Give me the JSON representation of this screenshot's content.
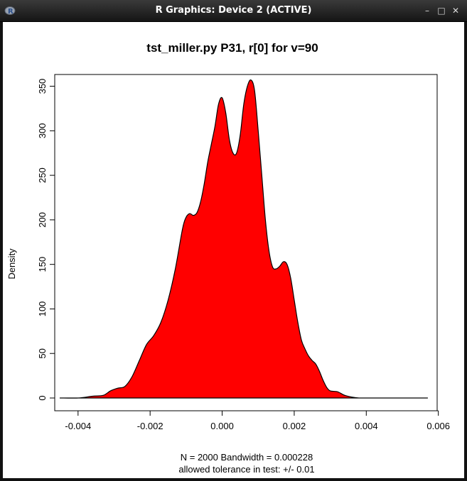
{
  "window": {
    "title": "R Graphics: Device 2 (ACTIVE)",
    "icons": {
      "app": "r-logo-icon",
      "minimize": "minimize-icon",
      "maximize": "maximize-icon",
      "close": "close-icon"
    },
    "minimize_glyph": "–",
    "maximize_glyph": "□",
    "close_glyph": "✕"
  },
  "chart_data": {
    "type": "area",
    "title": "tst_miller.py P31, r[0] for v=90",
    "xlabel": "N = 2000   Bandwidth = 0.000228",
    "xlabel2": "allowed tolerance in test: +/- 0.01",
    "ylabel": "Density",
    "xlim": [
      -0.0046,
      0.0059
    ],
    "ylim": [
      0,
      360
    ],
    "xticks": [
      -0.004,
      -0.002,
      0.0,
      0.002,
      0.004,
      0.006
    ],
    "xtick_labels": [
      "-0.004",
      "-0.002",
      "0.000",
      "0.002",
      "0.004",
      "0.006"
    ],
    "yticks": [
      0,
      50,
      100,
      150,
      200,
      250,
      300,
      350
    ],
    "ytick_labels": [
      "0",
      "50",
      "100",
      "150",
      "200",
      "250",
      "300",
      "350"
    ],
    "fill_color": "#ff0000",
    "line_color": "#000000",
    "series": [
      {
        "x": [
          -0.0045,
          -0.004,
          -0.0036,
          -0.0033,
          -0.0031,
          -0.0029,
          -0.0027,
          -0.0025,
          -0.0023,
          -0.0021,
          -0.0019,
          -0.0017,
          -0.0015,
          -0.0013,
          -0.0011,
          -0.001,
          -0.0009,
          -0.0008,
          -0.0007,
          -0.0006,
          -0.0005,
          -0.0004,
          -0.0003,
          -0.0002,
          -0.0001,
          0.0,
          0.0001,
          0.0002,
          0.0003,
          0.0004,
          0.0005,
          0.0006,
          0.0007,
          0.0008,
          0.0009,
          0.001,
          0.0011,
          0.0012,
          0.0013,
          0.0014,
          0.0015,
          0.0016,
          0.0017,
          0.0018,
          0.0019,
          0.002,
          0.0021,
          0.0022,
          0.0023,
          0.0024,
          0.0025,
          0.0026,
          0.0027,
          0.0028,
          0.0029,
          0.003,
          0.0032,
          0.0034,
          0.0036,
          0.0038,
          0.004,
          0.0042,
          0.0044,
          0.0046,
          0.005,
          0.0054,
          0.0057
        ],
        "y": [
          0,
          0,
          2,
          3,
          8,
          11,
          13,
          24,
          42,
          60,
          70,
          85,
          110,
          145,
          190,
          203,
          207,
          205,
          208,
          220,
          240,
          265,
          285,
          305,
          330,
          337,
          320,
          290,
          275,
          275,
          295,
          330,
          350,
          357,
          345,
          300,
          250,
          200,
          165,
          147,
          145,
          148,
          153,
          150,
          135,
          110,
          85,
          65,
          55,
          47,
          42,
          38,
          30,
          20,
          12,
          8,
          7,
          3,
          1,
          0,
          0,
          0,
          0,
          0,
          0,
          0,
          0
        ]
      }
    ]
  }
}
